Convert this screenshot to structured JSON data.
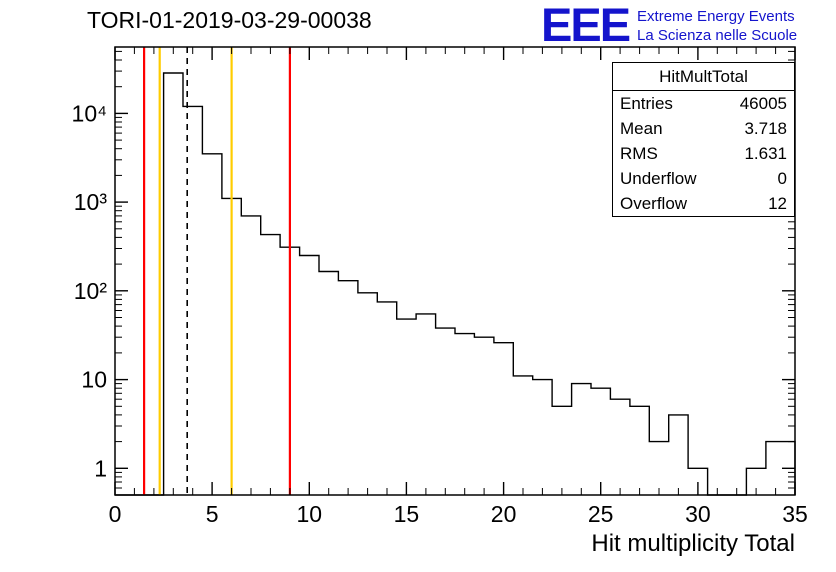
{
  "logo": {
    "text": "EEE",
    "line1": "Extreme Energy Events",
    "line2": "La Scienza nelle Scuole",
    "color": "#1414cc"
  },
  "stats": {
    "title": "HitMultTotal",
    "rows": [
      {
        "label": "Entries",
        "value": "46005"
      },
      {
        "label": "Mean",
        "value": "3.718"
      },
      {
        "label": "RMS",
        "value": "1.631"
      },
      {
        "label": "Underflow",
        "value": "0"
      },
      {
        "label": "Overflow",
        "value": "12"
      }
    ]
  },
  "chart_data": {
    "type": "bar",
    "histogram": true,
    "title": "TORI-01-2019-03-29-00038",
    "xlabel": "Hit multiplicity Total",
    "ylabel": "",
    "xlim": [
      0,
      35
    ],
    "ylim": [
      0.5,
      56000
    ],
    "ylog": true,
    "grid": false,
    "legend": false,
    "line_color": "#000000",
    "bin_width": 1,
    "bin_centers": [
      0,
      1,
      2,
      3,
      4,
      5,
      6,
      7,
      8,
      9,
      10,
      11,
      12,
      13,
      14,
      15,
      16,
      17,
      18,
      19,
      20,
      21,
      22,
      23,
      24,
      25,
      26,
      27,
      28,
      29,
      30,
      31,
      32,
      33,
      34,
      35
    ],
    "counts": [
      0,
      0,
      0,
      28500,
      12000,
      3500,
      1100,
      700,
      430,
      310,
      250,
      165,
      130,
      95,
      75,
      48,
      55,
      38,
      33,
      30,
      26,
      11,
      10,
      5,
      9,
      8,
      6,
      5,
      2,
      4,
      1,
      0,
      0,
      1,
      2,
      2
    ],
    "x_ticks": [
      {
        "v": 0,
        "label": "0"
      },
      {
        "v": 5,
        "label": "5"
      },
      {
        "v": 10,
        "label": "10"
      },
      {
        "v": 15,
        "label": "15"
      },
      {
        "v": 20,
        "label": "20"
      },
      {
        "v": 25,
        "label": "25"
      },
      {
        "v": 30,
        "label": "30"
      },
      {
        "v": 35,
        "label": "35"
      }
    ],
    "y_ticks": [
      {
        "v": 1,
        "label": "1"
      },
      {
        "v": 10,
        "label": "10"
      },
      {
        "v": 100,
        "label": "10²"
      },
      {
        "v": 1000,
        "label": "10³"
      },
      {
        "v": 10000,
        "label": "10⁴"
      }
    ],
    "marker_lines": [
      {
        "name": "error-low",
        "x": 1.5,
        "color": "#ff0000",
        "style": "solid"
      },
      {
        "name": "warning-low",
        "x": 2.3,
        "color": "#ffcc00",
        "style": "solid"
      },
      {
        "name": "mean",
        "x": 3.718,
        "color": "#000000",
        "style": "dashed"
      },
      {
        "name": "warning-high",
        "x": 6,
        "color": "#ffcc00",
        "style": "solid"
      },
      {
        "name": "error-high",
        "x": 9,
        "color": "#ff0000",
        "style": "solid"
      }
    ]
  }
}
